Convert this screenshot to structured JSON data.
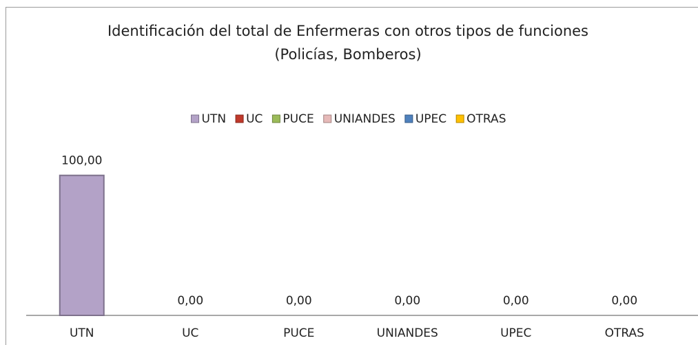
{
  "chart_data": {
    "type": "bar",
    "title": "Identificación del total de Enfermeras con otros tipos de funciones (Policías, Bomberos)",
    "categories": [
      "UTN",
      "UC",
      "PUCE",
      "UNIANDES",
      "UPEC",
      "OTRAS"
    ],
    "values": [
      100,
      0,
      0,
      0,
      0,
      0
    ],
    "value_labels": [
      "100,00",
      "0,00",
      "0,00",
      "0,00",
      "0,00",
      "0,00"
    ],
    "colors": [
      "#b3a2c7",
      "#c0392b",
      "#9bbb59",
      "#e6b9b8",
      "#4f81bd",
      "#ffc000"
    ],
    "ylim": [
      0,
      120
    ],
    "legend": "top"
  }
}
